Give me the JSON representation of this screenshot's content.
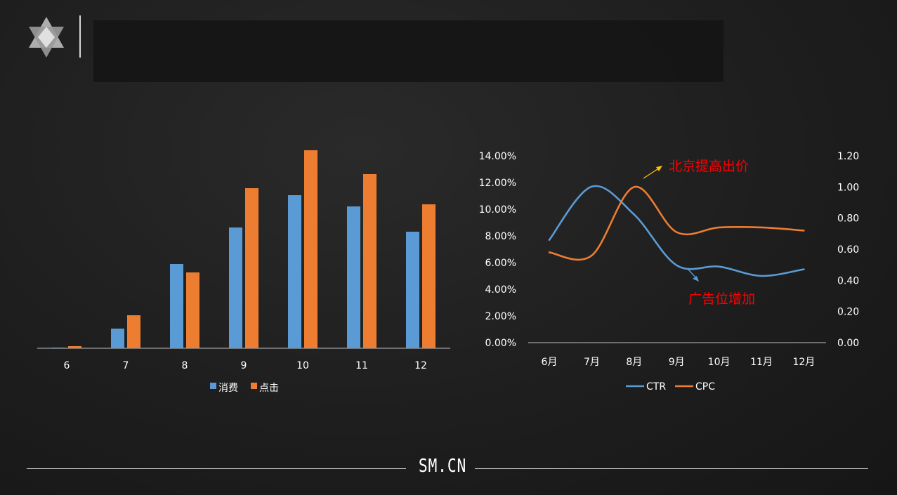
{
  "header": {
    "logo_icon": "star-of-david-icon",
    "title": ""
  },
  "colors": {
    "blue": "#5b9bd5",
    "orange": "#ed7d31",
    "annotation": "#ff0000",
    "background": "#1e1e1e"
  },
  "chart_data": [
    {
      "type": "bar",
      "title": "",
      "categories": [
        "6",
        "7",
        "8",
        "9",
        "10",
        "11",
        "12"
      ],
      "series": [
        {
          "name": "消费",
          "color": "#5b9bd5",
          "values": [
            1,
            28,
            120,
            172,
            218,
            202,
            166
          ]
        },
        {
          "name": "点击",
          "color": "#ed7d31",
          "values": [
            3,
            47,
            108,
            228,
            282,
            248,
            205
          ]
        }
      ],
      "ylim": [
        0,
        282
      ],
      "grid": false,
      "legend": "bottom"
    },
    {
      "type": "line",
      "title": "",
      "x": [
        "6月",
        "7月",
        "8月",
        "9月",
        "10月",
        "11月",
        "12月"
      ],
      "series": [
        {
          "name": "CTR",
          "axis": "left",
          "color": "#5b9bd5",
          "values": [
            0.077,
            0.117,
            0.096,
            0.058,
            0.057,
            0.05,
            0.055
          ]
        },
        {
          "name": "CPC",
          "axis": "right",
          "color": "#ed7d31",
          "values": [
            0.58,
            0.56,
            1.0,
            0.71,
            0.74,
            0.74,
            0.72
          ]
        }
      ],
      "y_left": {
        "ylim": [
          0,
          0.14
        ],
        "ticks": [
          "0.00%",
          "2.00%",
          "4.00%",
          "6.00%",
          "8.00%",
          "10.00%",
          "12.00%",
          "14.00%"
        ]
      },
      "y_right": {
        "ylim": [
          0,
          1.2
        ],
        "ticks": [
          "0.00",
          "0.20",
          "0.40",
          "0.60",
          "0.80",
          "1.00",
          "1.20"
        ]
      },
      "annotations": [
        {
          "text": "北京提高出价"
        },
        {
          "text": "广告位增加"
        }
      ],
      "grid": false,
      "legend": "bottom"
    }
  ],
  "footer": {
    "brand": "SM.CN"
  }
}
